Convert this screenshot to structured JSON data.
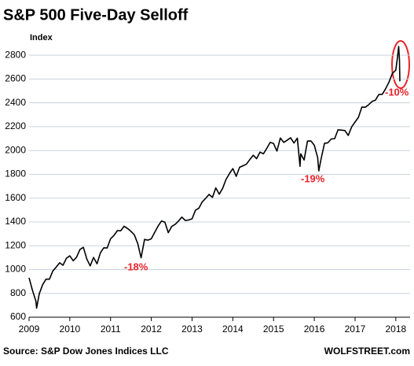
{
  "chart_data": {
    "type": "line",
    "title": "S&P 500 Five-Day Selloff",
    "y_label": "Index",
    "source": "Source: S&P Dow Jones Indices LLC",
    "credit": "WOLFSTREET.com",
    "annotations": [
      "-18%",
      "-19%",
      "-10%"
    ],
    "xlim": [
      2009,
      2018.35
    ],
    "xticks": [
      2009,
      2010,
      2011,
      2012,
      2013,
      2014,
      2015,
      2016,
      2017,
      2018
    ],
    "ylim": [
      600,
      2920
    ],
    "yticks": [
      600,
      800,
      1000,
      1200,
      1400,
      1600,
      1800,
      2000,
      2200,
      2400,
      2600,
      2800
    ],
    "grid": true,
    "series": [
      {
        "name": "S&P 500",
        "color": "#000000",
        "x": [
          2009,
          2009.083,
          2009.167,
          2009.186,
          2009.25,
          2009.333,
          2009.417,
          2009.5,
          2009.583,
          2009.667,
          2009.75,
          2009.833,
          2009.917,
          2010,
          2010.083,
          2010.167,
          2010.25,
          2010.333,
          2010.417,
          2010.5,
          2010.583,
          2010.667,
          2010.75,
          2010.833,
          2010.917,
          2011,
          2011.083,
          2011.167,
          2011.25,
          2011.333,
          2011.417,
          2011.5,
          2011.583,
          2011.667,
          2011.75,
          2011.833,
          2011.917,
          2012,
          2012.083,
          2012.167,
          2012.25,
          2012.333,
          2012.417,
          2012.5,
          2012.583,
          2012.667,
          2012.75,
          2012.833,
          2012.917,
          2013,
          2013.083,
          2013.167,
          2013.25,
          2013.333,
          2013.417,
          2013.5,
          2013.583,
          2013.667,
          2013.75,
          2013.833,
          2013.917,
          2014,
          2014.083,
          2014.167,
          2014.25,
          2014.333,
          2014.417,
          2014.5,
          2014.583,
          2014.667,
          2014.75,
          2014.833,
          2014.917,
          2015,
          2015.083,
          2015.167,
          2015.25,
          2015.333,
          2015.417,
          2015.5,
          2015.583,
          2015.65,
          2015.667,
          2015.75,
          2015.833,
          2015.917,
          2016,
          2016.083,
          2016.11,
          2016.167,
          2016.25,
          2016.333,
          2016.417,
          2016.5,
          2016.583,
          2016.667,
          2016.75,
          2016.833,
          2016.917,
          2017,
          2017.083,
          2017.167,
          2017.25,
          2017.333,
          2017.417,
          2017.5,
          2017.583,
          2017.667,
          2017.75,
          2017.833,
          2017.917,
          2018,
          2018.04,
          2018.07,
          2018.09,
          2018.1
        ],
        "values": [
          931,
          826,
          735,
          676,
          797,
          873,
          919,
          919,
          987,
          1021,
          1057,
          1036,
          1096,
          1115,
          1074,
          1104,
          1169,
          1187,
          1089,
          1031,
          1102,
          1049,
          1141,
          1183,
          1181,
          1258,
          1286,
          1327,
          1326,
          1364,
          1345,
          1321,
          1292,
          1219,
          1099,
          1253,
          1247,
          1258,
          1312,
          1366,
          1408,
          1398,
          1310,
          1362,
          1379,
          1407,
          1441,
          1412,
          1416,
          1426,
          1498,
          1515,
          1569,
          1598,
          1631,
          1606,
          1686,
          1633,
          1682,
          1757,
          1806,
          1848,
          1783,
          1859,
          1872,
          1884,
          1924,
          1960,
          1931,
          1987,
          1972,
          2018,
          2068,
          2059,
          1995,
          2105,
          2068,
          2086,
          2107,
          2063,
          2104,
          1867,
          1972,
          1920,
          2079,
          2080,
          2044,
          1940,
          1829,
          1932,
          2060,
          2065,
          2097,
          2099,
          2174,
          2171,
          2168,
          2126,
          2199,
          2239,
          2279,
          2364,
          2363,
          2384,
          2412,
          2423,
          2470,
          2472,
          2519,
          2575,
          2648,
          2674,
          2780,
          2873,
          2762,
          2581
        ]
      }
    ]
  }
}
